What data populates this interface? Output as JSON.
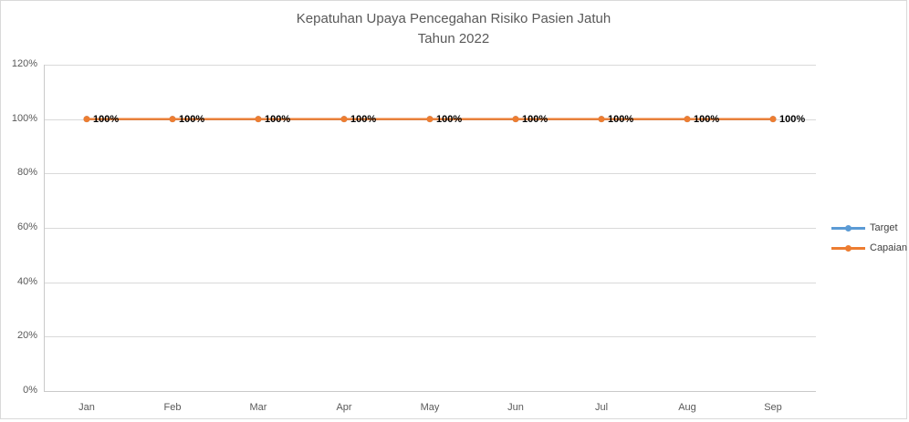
{
  "window": {
    "background": "#FFFFFF",
    "border_color": "#D9D9D9"
  },
  "chart_data": {
    "type": "line",
    "title": "Kepatuhan Upaya Pencegahan Risiko Pasien Jatuh",
    "subtitle": "Tahun 2022",
    "title_color": "#595959",
    "categories": [
      "Jan",
      "Feb",
      "Mar",
      "Apr",
      "May",
      "Jun",
      "Jul",
      "Aug",
      "Sep"
    ],
    "series": [
      {
        "name": "Target",
        "color": "#5B9BD5",
        "values": [
          100,
          100,
          100,
          100,
          100,
          100,
          100,
          100,
          100
        ]
      },
      {
        "name": "Capaian",
        "color": "#ED7D31",
        "values": [
          100,
          100,
          100,
          100,
          100,
          100,
          100,
          100,
          100
        ]
      }
    ],
    "data_labels": {
      "series": "Capaian",
      "values": [
        "100%",
        "100%",
        "100%",
        "100%",
        "100%",
        "100%",
        "100%",
        "100%",
        " 100%"
      ],
      "color": "#000000"
    },
    "y_ticks": [
      "0%",
      "20%",
      "40%",
      "60%",
      "80%",
      "100%",
      "120%"
    ],
    "ylim": [
      0,
      120
    ],
    "xlabel": "",
    "ylabel": "",
    "grid": true,
    "legend_position": "right",
    "gridline_color": "#D9D9D9",
    "axis_color": "#C9C9C9",
    "axis_label_color": "#595959",
    "legend_text_color": "#404040"
  }
}
